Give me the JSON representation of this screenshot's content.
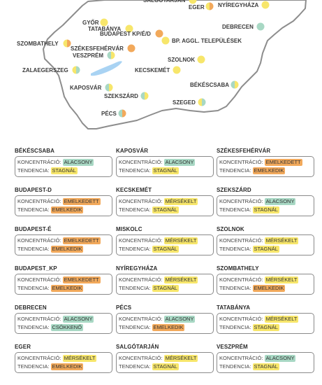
{
  "colors": {
    "ALACSONY": "#a8d8c4",
    "MÉRSÉKELT": "#f7e66b",
    "EMELKEDETT": "#f2a95b",
    "STAGNÁL": "#f7e66b",
    "EMELKEDIK": "#f2a95b",
    "CSÖKKENŐ": "#a8d8c4",
    "map_outline": "#8d8d8d",
    "map_fill": "#ffffff",
    "lake": "#a9d3f3"
  },
  "labels": {
    "concentration": "KONCENTRÁCIÓ:",
    "trend": "TENDENCIA:"
  },
  "map_places": [
    {
      "name": "SALGÓTARJÁN",
      "left": "MÉRSÉKELT",
      "right": "MÉRSÉKELT"
    },
    {
      "name": "EGER",
      "left": "MÉRSÉKELT",
      "right": "EMELKEDETT"
    },
    {
      "name": "NYÍREGYHÁZA",
      "left": "MÉRSÉKELT",
      "right": "MÉRSÉKELT"
    },
    {
      "name": "GYŐR",
      "left": "MÉRSÉKELT",
      "right": "MÉRSÉKELT"
    },
    {
      "name": "TATABÁNYA",
      "left": "MÉRSÉKELT",
      "right": "MÉRSÉKELT"
    },
    {
      "name": "BUDAPEST KP/É/D",
      "left": "EMELKEDETT",
      "right": "EMELKEDETT"
    },
    {
      "name": "DEBRECEN",
      "left": "ALACSONY",
      "right": "ALACSONY"
    },
    {
      "name": "SZOMBATHELY",
      "left": "MÉRSÉKELT",
      "right": "EMELKEDETT"
    },
    {
      "name": "SZÉKESFEHÉRVÁR",
      "left": "EMELKEDETT",
      "right": "EMELKEDETT"
    },
    {
      "name": "BP. AGGL. TELEPÜLÉSEK",
      "left": "MÉRSÉKELT",
      "right": "MÉRSÉKELT"
    },
    {
      "name": "VESZPRÉM",
      "left": "ALACSONY",
      "right": "MÉRSÉKELT"
    },
    {
      "name": "SZOLNOK",
      "left": "MÉRSÉKELT",
      "right": "MÉRSÉKELT"
    },
    {
      "name": "ZALAEGERSZEG",
      "left": "MÉRSÉKELT",
      "right": "ALACSONY"
    },
    {
      "name": "KECSKEMÉT",
      "left": "MÉRSÉKELT",
      "right": "MÉRSÉKELT"
    },
    {
      "name": "KAPOSVÁR",
      "left": "ALACSONY",
      "right": "MÉRSÉKELT"
    },
    {
      "name": "BÉKÉSCSABA",
      "left": "ALACSONY",
      "right": "MÉRSÉKELT"
    },
    {
      "name": "SZEKSZÁRD",
      "left": "ALACSONY",
      "right": "MÉRSÉKELT"
    },
    {
      "name": "SZEGED",
      "left": "MÉRSÉKELT",
      "right": "ALACSONY"
    },
    {
      "name": "PÉCS",
      "left": "ALACSONY",
      "right": "EMELKEDETT"
    }
  ],
  "cards": [
    {
      "city": "BÉKÉSCSABA",
      "concentration": "ALACSONY",
      "trend": "STAGNÁL"
    },
    {
      "city": "KAPOSVÁR",
      "concentration": "ALACSONY",
      "trend": "STAGNÁL"
    },
    {
      "city": "SZÉKESFEHÉRVÁR",
      "concentration": "EMELKEDETT",
      "trend": "EMELKEDIK"
    },
    {
      "city": "BUDAPEST-D",
      "concentration": "EMELKEDETT",
      "trend": "EMELKEDIK"
    },
    {
      "city": "KECSKEMÉT",
      "concentration": "MÉRSÉKELT",
      "trend": "STAGNÁL"
    },
    {
      "city": "SZEKSZÁRD",
      "concentration": "ALACSONY",
      "trend": "STAGNÁL"
    },
    {
      "city": "BUDAPEST-É",
      "concentration": "EMELKEDETT",
      "trend": "EMELKEDIK"
    },
    {
      "city": "MISKOLC",
      "concentration": "MÉRSÉKELT",
      "trend": "STAGNÁL"
    },
    {
      "city": "SZOLNOK",
      "concentration": "MÉRSÉKELT",
      "trend": "STAGNÁL"
    },
    {
      "city": "BUDAPEST_KP",
      "concentration": "EMELKEDETT",
      "trend": "EMELKEDIK"
    },
    {
      "city": "NYÍREGYHÁZA",
      "concentration": "MÉRSÉKELT",
      "trend": "STAGNÁL"
    },
    {
      "city": "SZOMBATHELY",
      "concentration": "MÉRSÉKELT",
      "trend": "EMELKEDIK"
    },
    {
      "city": "DEBRECEN",
      "concentration": "ALACSONY",
      "trend": "CSÖKKENŐ"
    },
    {
      "city": "PÉCS",
      "concentration": "ALACSONY",
      "trend": "EMELKEDIK"
    },
    {
      "city": "TATABÁNYA",
      "concentration": "MÉRSÉKELT",
      "trend": "STAGNÁL"
    },
    {
      "city": "EGER",
      "concentration": "MÉRSÉKELT",
      "trend": "EMELKEDIK"
    },
    {
      "city": "SALGÓTARJÁN",
      "concentration": "MÉRSÉKELT",
      "trend": "STAGNÁL"
    },
    {
      "city": "VESZPRÉM",
      "concentration": "ALACSONY",
      "trend": "STAGNÁL"
    }
  ]
}
